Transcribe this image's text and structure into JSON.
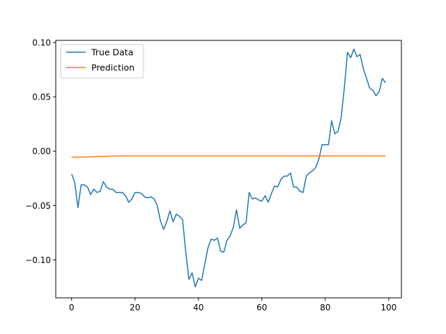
{
  "chart_data": {
    "type": "line",
    "title": "",
    "xlabel": "",
    "ylabel": "",
    "xlim": [
      -5,
      104
    ],
    "ylim": [
      -0.135,
      0.102
    ],
    "x_ticks": [
      0,
      20,
      40,
      60,
      80,
      100
    ],
    "x_tick_labels": [
      "0",
      "20",
      "40",
      "60",
      "80",
      "100"
    ],
    "y_ticks": [
      0.1,
      0.05,
      0.0,
      -0.05,
      -0.1
    ],
    "y_tick_labels": [
      "0.10",
      "0.05",
      "0.00",
      "−0.05",
      "−0.10"
    ],
    "grid": false,
    "legend_position": "upper-left",
    "x": [
      0,
      1,
      2,
      3,
      4,
      5,
      6,
      7,
      8,
      9,
      10,
      11,
      12,
      13,
      14,
      15,
      16,
      17,
      18,
      19,
      20,
      21,
      22,
      23,
      24,
      25,
      26,
      27,
      28,
      29,
      30,
      31,
      32,
      33,
      34,
      35,
      36,
      37,
      38,
      39,
      40,
      41,
      42,
      43,
      44,
      45,
      46,
      47,
      48,
      49,
      50,
      51,
      52,
      53,
      54,
      55,
      56,
      57,
      58,
      59,
      60,
      61,
      62,
      63,
      64,
      65,
      66,
      67,
      68,
      69,
      70,
      71,
      72,
      73,
      74,
      75,
      76,
      77,
      78,
      79,
      80,
      81,
      82,
      83,
      84,
      85,
      86,
      87,
      88,
      89,
      90,
      91,
      92,
      93,
      94,
      95,
      96,
      97,
      98,
      99
    ],
    "series": [
      {
        "name": "True Data",
        "color": "#1f77b4",
        "values": [
          -0.021,
          -0.029,
          -0.052,
          -0.031,
          -0.031,
          -0.033,
          -0.04,
          -0.035,
          -0.038,
          -0.037,
          -0.028,
          -0.033,
          -0.035,
          -0.035,
          -0.038,
          -0.038,
          -0.038,
          -0.041,
          -0.047,
          -0.044,
          -0.038,
          -0.038,
          -0.039,
          -0.042,
          -0.043,
          -0.042,
          -0.044,
          -0.05,
          -0.064,
          -0.072,
          -0.065,
          -0.055,
          -0.065,
          -0.058,
          -0.06,
          -0.063,
          -0.093,
          -0.118,
          -0.112,
          -0.125,
          -0.117,
          -0.119,
          -0.104,
          -0.089,
          -0.081,
          -0.082,
          -0.08,
          -0.092,
          -0.093,
          -0.082,
          -0.078,
          -0.07,
          -0.054,
          -0.071,
          -0.068,
          -0.066,
          -0.038,
          -0.044,
          -0.043,
          -0.045,
          -0.046,
          -0.041,
          -0.047,
          -0.039,
          -0.032,
          -0.033,
          -0.026,
          -0.023,
          -0.023,
          -0.02,
          -0.033,
          -0.033,
          -0.037,
          -0.038,
          -0.023,
          -0.02,
          -0.018,
          -0.015,
          -0.007,
          0.006,
          0.006,
          0.006,
          0.028,
          0.016,
          0.018,
          0.031,
          0.058,
          0.091,
          0.086,
          0.094,
          0.087,
          0.089,
          0.076,
          0.067,
          0.058,
          0.056,
          0.051,
          0.055,
          0.067,
          0.063
        ]
      },
      {
        "name": "Prediction",
        "color": "#ff7f0e",
        "values": [
          -0.0055,
          -0.0055,
          -0.0055,
          -0.0054,
          -0.0054,
          -0.0053,
          -0.0052,
          -0.0051,
          -0.005,
          -0.0049,
          -0.0048,
          -0.0047,
          -0.0046,
          -0.0045,
          -0.0045,
          -0.0044,
          -0.0044,
          -0.0044,
          -0.0043,
          -0.0043,
          -0.0043,
          -0.0043,
          -0.0043,
          -0.0043,
          -0.0043,
          -0.0043,
          -0.0043,
          -0.0043,
          -0.0043,
          -0.0043,
          -0.0043,
          -0.0043,
          -0.0043,
          -0.0043,
          -0.0043,
          -0.0043,
          -0.0043,
          -0.0043,
          -0.0043,
          -0.0043,
          -0.0043,
          -0.0043,
          -0.0043,
          -0.0043,
          -0.0043,
          -0.0043,
          -0.0043,
          -0.0043,
          -0.0043,
          -0.0043,
          -0.0043,
          -0.0043,
          -0.0043,
          -0.0043,
          -0.0043,
          -0.0043,
          -0.0043,
          -0.0043,
          -0.0043,
          -0.0043,
          -0.0043,
          -0.0043,
          -0.0043,
          -0.0043,
          -0.0043,
          -0.0043,
          -0.0043,
          -0.0043,
          -0.0043,
          -0.0043,
          -0.0043,
          -0.0043,
          -0.0043,
          -0.0043,
          -0.0043,
          -0.0043,
          -0.0043,
          -0.0043,
          -0.0043,
          -0.0043,
          -0.0043,
          -0.0043,
          -0.0043,
          -0.0043,
          -0.0043,
          -0.0043,
          -0.0043,
          -0.0043,
          -0.0043,
          -0.0043,
          -0.0043,
          -0.0043,
          -0.0043,
          -0.0043,
          -0.0043,
          -0.0043,
          -0.0043,
          -0.0043,
          -0.0043,
          -0.0043
        ]
      }
    ]
  }
}
